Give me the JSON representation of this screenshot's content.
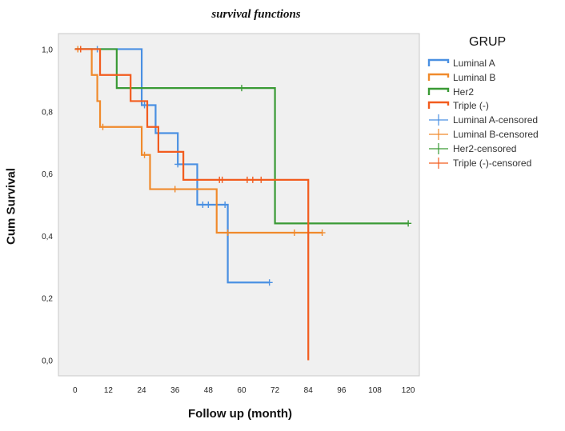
{
  "chart_data": {
    "type": "line",
    "subtype": "kaplan-meier",
    "title": "survival functions",
    "xlabel": "Follow up (month)",
    "ylabel": "Cum Survival",
    "xlim": [
      -6,
      124
    ],
    "ylim": [
      -0.05,
      1.05
    ],
    "xticks": [
      0,
      12,
      24,
      36,
      48,
      60,
      72,
      84,
      96,
      108,
      120
    ],
    "yticks": [
      0.0,
      0.2,
      0.4,
      0.6,
      0.8,
      1.0
    ],
    "ytick_labels": [
      "0,0",
      "0,2",
      "0,4",
      "0,6",
      "0,8",
      "1,0"
    ],
    "legend_title": "GRUP",
    "legend_labels": [
      "Luminal A",
      "Luminal B",
      "Her2",
      "Triple (-)",
      "Luminal A-censored",
      "Luminal B-censored",
      "Her2-censored",
      "Triple (-)-censored"
    ],
    "series": [
      {
        "name": "Luminal A",
        "color": "#4a90e2",
        "steps": [
          [
            0,
            1.0
          ],
          [
            24,
            0.82
          ],
          [
            29,
            0.73
          ],
          [
            37,
            0.63
          ],
          [
            44,
            0.5
          ],
          [
            55,
            0.25
          ],
          [
            70,
            0.25
          ]
        ],
        "censored": [
          [
            8,
            1.0
          ],
          [
            25,
            0.82
          ],
          [
            37,
            0.63
          ],
          [
            46,
            0.5
          ],
          [
            48,
            0.5
          ],
          [
            54,
            0.5
          ],
          [
            70,
            0.25
          ]
        ]
      },
      {
        "name": "Luminal B",
        "color": "#f08a2c",
        "steps": [
          [
            0,
            1.0
          ],
          [
            6,
            0.917
          ],
          [
            8,
            0.833
          ],
          [
            9,
            0.75
          ],
          [
            24,
            0.66
          ],
          [
            27,
            0.55
          ],
          [
            51,
            0.41
          ],
          [
            89,
            0.41
          ]
        ],
        "censored": [
          [
            1,
            1.0
          ],
          [
            2,
            1.0
          ],
          [
            10,
            0.75
          ],
          [
            25,
            0.66
          ],
          [
            36,
            0.55
          ],
          [
            55,
            0.41
          ],
          [
            79,
            0.41
          ],
          [
            89,
            0.41
          ]
        ]
      },
      {
        "name": "Her2",
        "color": "#3a9a35",
        "steps": [
          [
            0,
            1.0
          ],
          [
            15,
            0.875
          ],
          [
            72,
            0.44
          ],
          [
            120,
            0.44
          ]
        ],
        "censored": [
          [
            60,
            0.875
          ],
          [
            120,
            0.44
          ]
        ]
      },
      {
        "name": "Triple (-)",
        "color": "#f25c1e",
        "steps": [
          [
            0,
            1.0
          ],
          [
            9,
            0.917
          ],
          [
            20,
            0.833
          ],
          [
            26,
            0.75
          ],
          [
            30,
            0.67
          ],
          [
            39,
            0.58
          ],
          [
            84,
            0.0
          ]
        ],
        "censored": [
          [
            2,
            1.0
          ],
          [
            52,
            0.58
          ],
          [
            53,
            0.58
          ],
          [
            62,
            0.58
          ],
          [
            64,
            0.58
          ],
          [
            67,
            0.58
          ]
        ]
      }
    ]
  }
}
